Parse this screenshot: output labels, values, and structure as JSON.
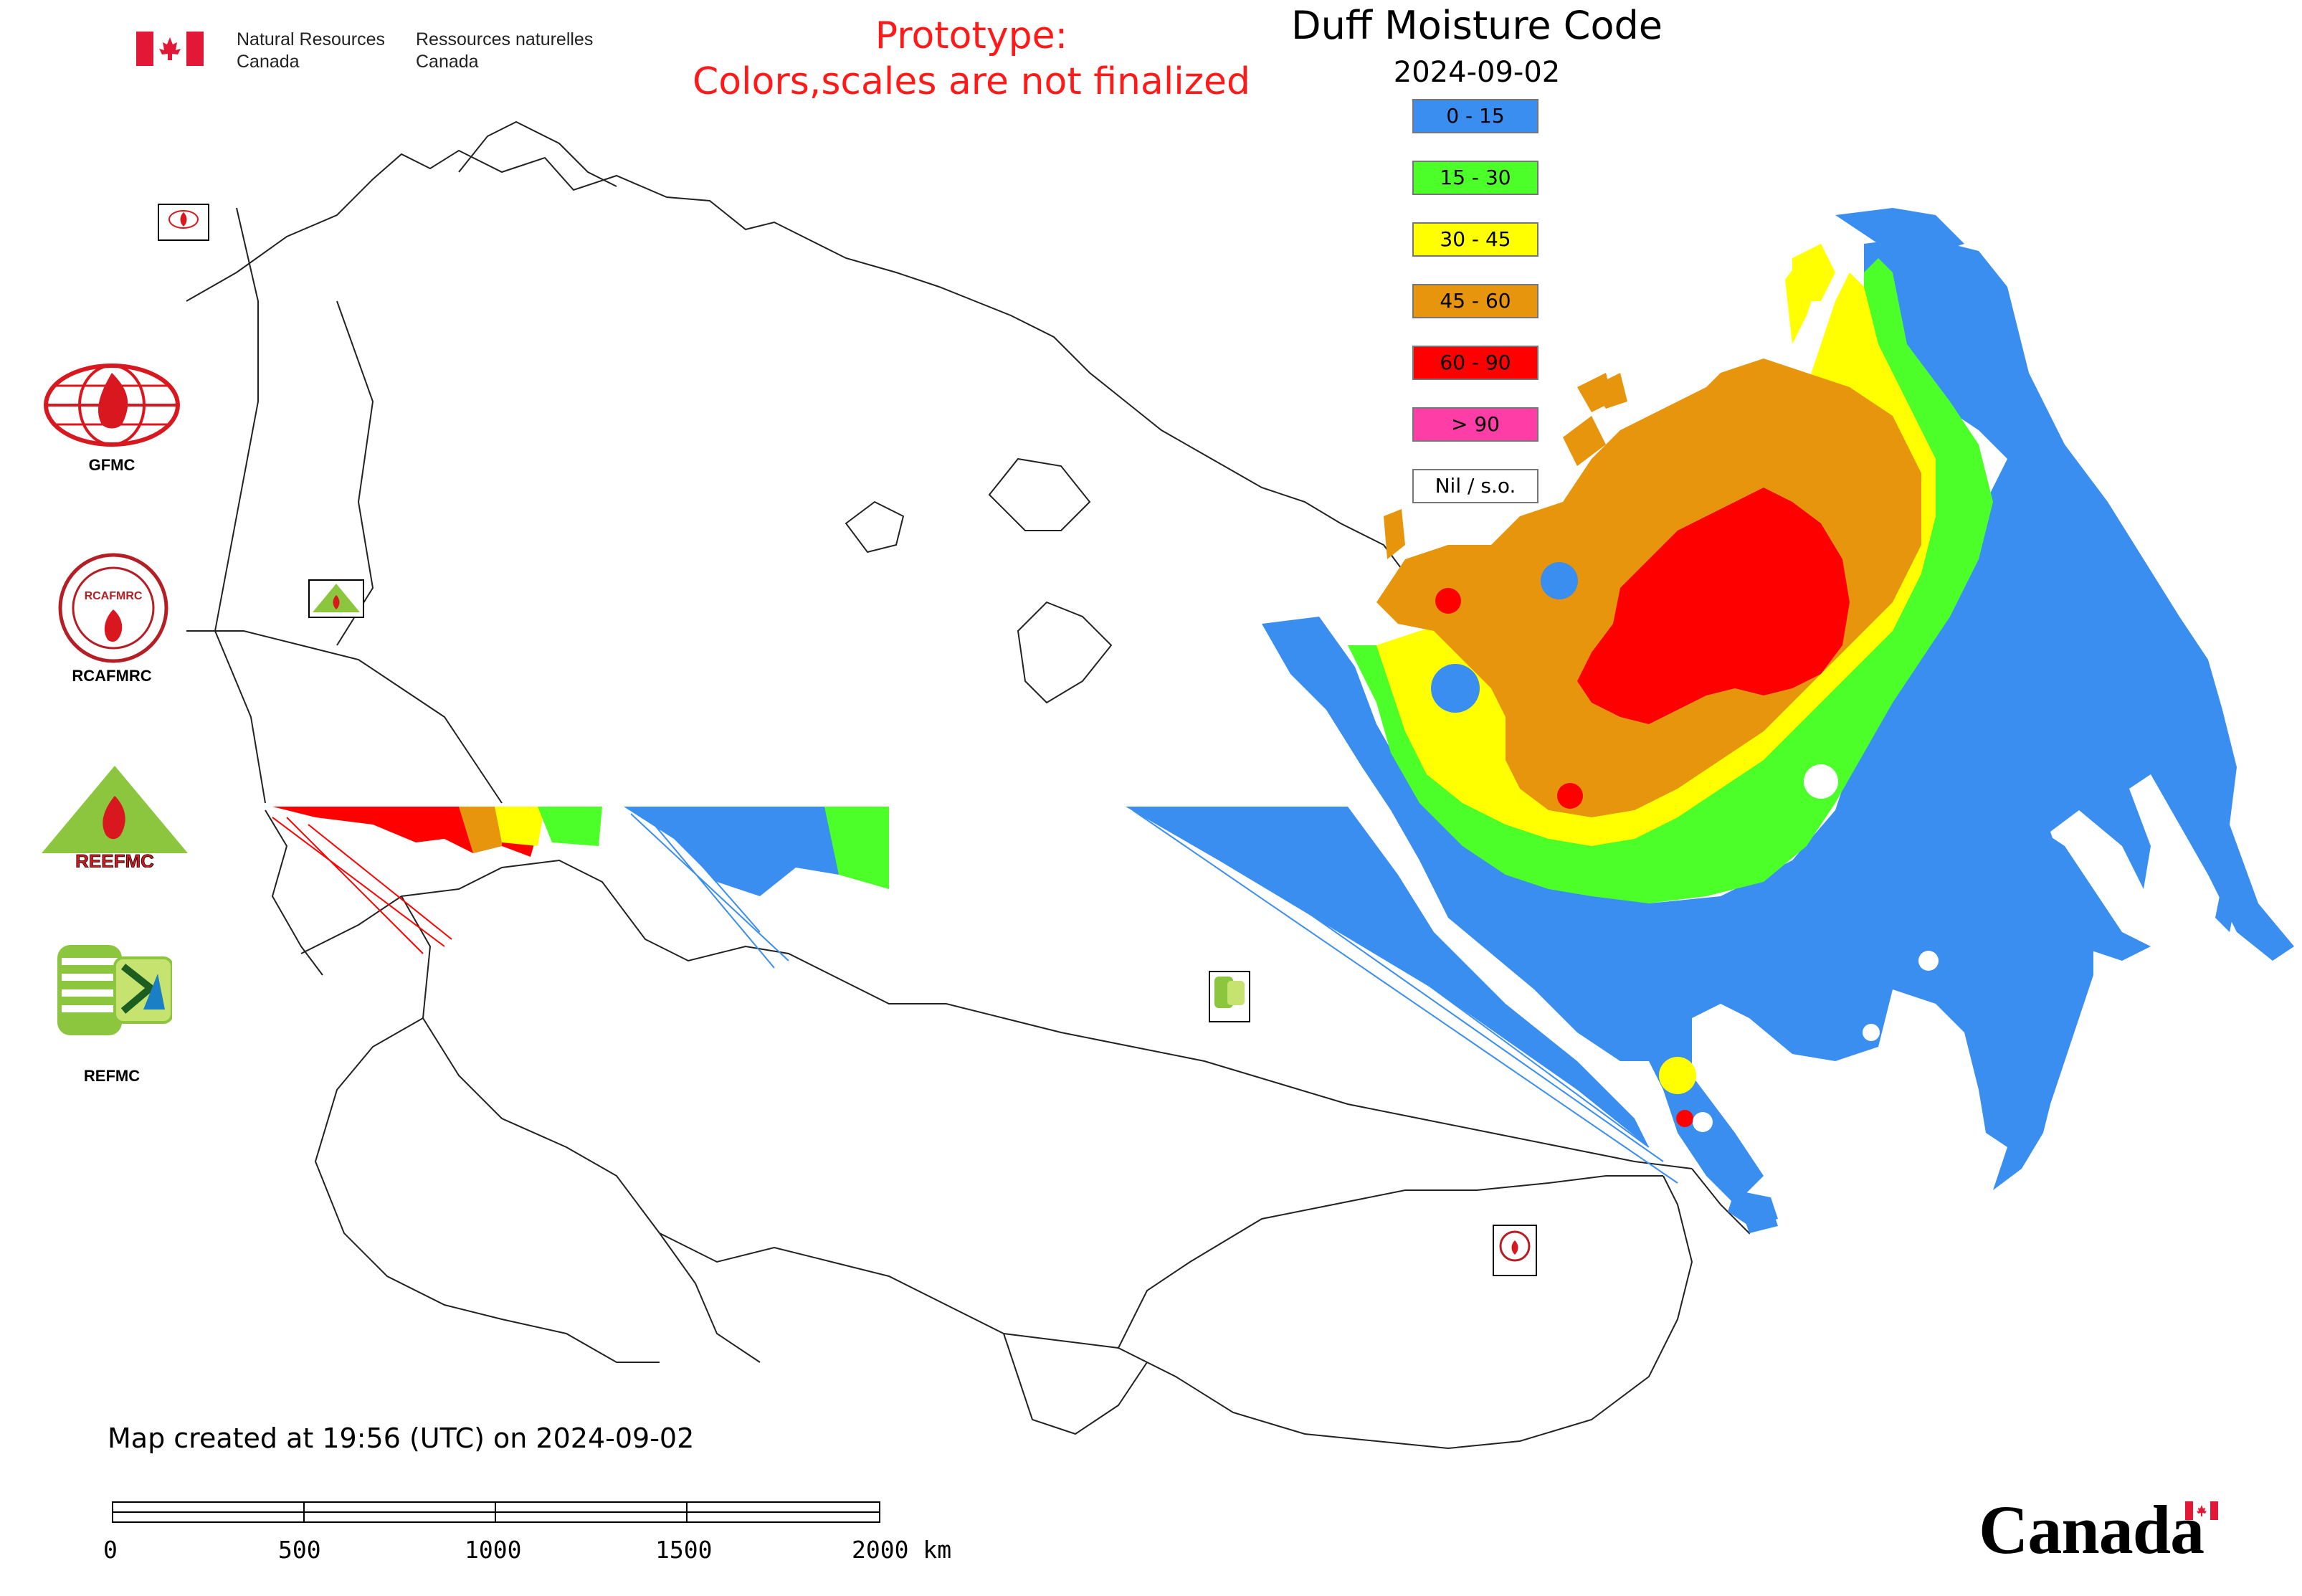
{
  "header": {
    "agency_en": [
      "Natural Resources",
      "Canada"
    ],
    "agency_fr": [
      "Ressources naturelles",
      "Canada"
    ],
    "prototype_line1": "Prototype:",
    "prototype_line2": "Colors,scales are not finalized",
    "title": "Duff Moisture Code",
    "date": "2024-09-02"
  },
  "legend": [
    {
      "label": "0 - 15",
      "color": "#3a8ef0"
    },
    {
      "label": "15 - 30",
      "color": "#4dff29"
    },
    {
      "label": "30 - 45",
      "color": "#ffff00"
    },
    {
      "label": "45 - 60",
      "color": "#e6950c"
    },
    {
      "label": "60 - 90",
      "color": "#ff0000"
    },
    {
      "label": "> 90",
      "color": "#ff3da6"
    },
    {
      "label": "Nil / s.o.",
      "color": "#ffffff"
    }
  ],
  "logos": [
    {
      "label": "GFMC",
      "icon": "gfmc-globe-flame-icon"
    },
    {
      "label": "RCAFMRC",
      "icon": "rcafmrc-seal-icon"
    },
    {
      "label": "REEFMC",
      "icon": "reefmc-triangle-icon"
    },
    {
      "label": "REFMC",
      "icon": "refmc-sigma-icon"
    }
  ],
  "footer": {
    "created": "Map created at 19:56 (UTC) on 2024-09-02",
    "scale_ticks": [
      "0",
      "500",
      "1000",
      "1500",
      "2000 km"
    ],
    "canada_wordmark": "Canada"
  }
}
